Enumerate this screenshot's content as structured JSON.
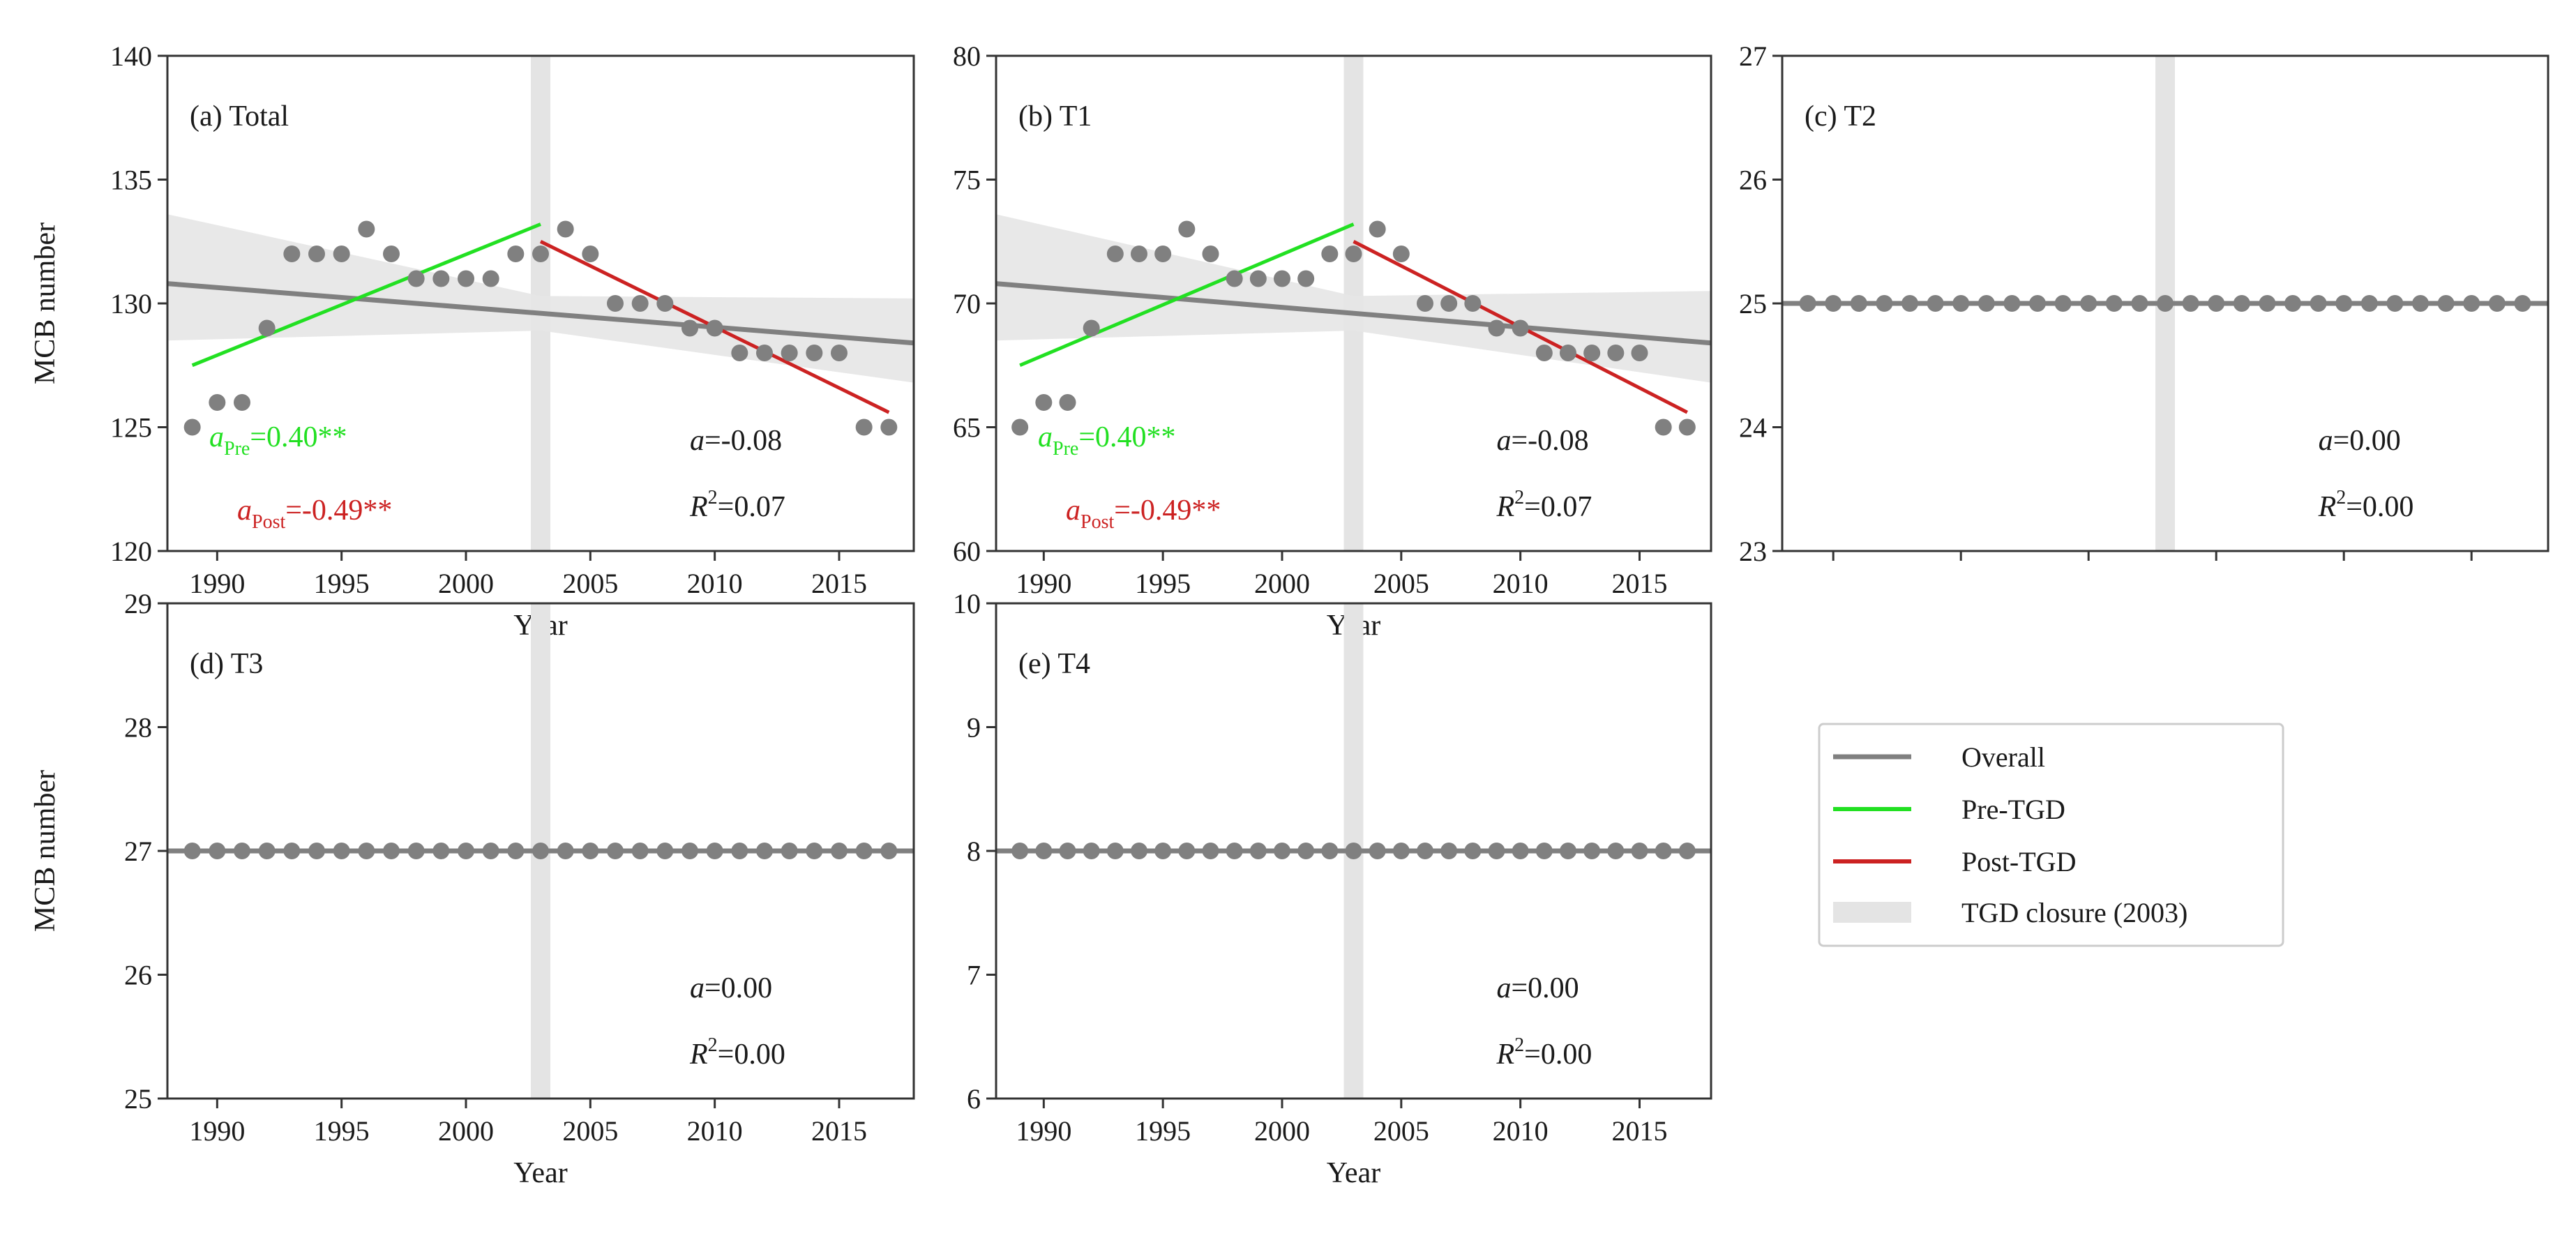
{
  "figure": {
    "xlabel": "Year",
    "ylabel": "MCB number",
    "colors": {
      "overall": "#808080",
      "pre": "#22e022",
      "post": "#cc2222",
      "closure": "#e4e4e4",
      "ci": "#e6e6e6",
      "points": "#808080",
      "text": "#1a1a1a"
    }
  },
  "legend": {
    "overall": "Overall",
    "pre": "Pre-TGD",
    "post": "Post-TGD",
    "closure": "TGD closure (2003)"
  },
  "stats": {
    "a_symbol": "a",
    "r_symbol": "R",
    "r_sup": "2",
    "eq": "=",
    "pre_sub": "Pre",
    "post_sub": "Post"
  },
  "chart_data": [
    {
      "id": "total",
      "type": "scatter",
      "title": "(a) Total",
      "xlim": [
        1988,
        2018
      ],
      "ylim": [
        120,
        140
      ],
      "yticks": [
        120,
        125,
        130,
        135,
        140
      ],
      "xticks": [
        1990,
        1995,
        2000,
        2005,
        2010,
        2015
      ],
      "show_x_labels": true,
      "show_ylabel": true,
      "closure_year": 2003,
      "x": [
        1989,
        1990,
        1991,
        1992,
        1993,
        1994,
        1995,
        1996,
        1997,
        1998,
        1999,
        2000,
        2001,
        2002,
        2003,
        2004,
        2005,
        2006,
        2007,
        2008,
        2009,
        2010,
        2011,
        2012,
        2013,
        2014,
        2015,
        2016,
        2017
      ],
      "y": [
        125,
        126,
        126,
        129,
        132,
        132,
        132,
        133,
        132,
        131,
        131,
        131,
        131,
        132,
        132,
        133,
        132,
        130,
        130,
        130,
        129,
        129,
        128,
        128,
        128,
        128,
        128,
        125,
        125
      ],
      "overall_fit": {
        "x": [
          1988,
          2018
        ],
        "y": [
          130.8,
          128.4
        ]
      },
      "ci_band": {
        "x": [
          1988,
          2003,
          2018
        ],
        "upper": [
          133.6,
          130.3,
          130.2
        ],
        "lower": [
          128.5,
          128.9,
          126.8
        ]
      },
      "pre_fit": {
        "x": [
          1989,
          2003
        ],
        "y": [
          127.5,
          133.2
        ]
      },
      "post_fit": {
        "x": [
          2003,
          2017
        ],
        "y": [
          132.5,
          125.6
        ]
      },
      "a_pre": "0.40**",
      "a_post": "-0.49**",
      "a_value": "-0.08",
      "r2_value": "0.07"
    },
    {
      "id": "t1",
      "type": "scatter",
      "title": "(b) T1",
      "xlim": [
        1988,
        2018
      ],
      "ylim": [
        60,
        80
      ],
      "yticks": [
        60,
        65,
        70,
        75,
        80
      ],
      "xticks": [
        1990,
        1995,
        2000,
        2005,
        2010,
        2015
      ],
      "show_x_labels": true,
      "show_ylabel": false,
      "closure_year": 2003,
      "x": [
        1989,
        1990,
        1991,
        1992,
        1993,
        1994,
        1995,
        1996,
        1997,
        1998,
        1999,
        2000,
        2001,
        2002,
        2003,
        2004,
        2005,
        2006,
        2007,
        2008,
        2009,
        2010,
        2011,
        2012,
        2013,
        2014,
        2015,
        2016,
        2017
      ],
      "y": [
        65,
        66,
        66,
        69,
        72,
        72,
        72,
        73,
        72,
        71,
        71,
        71,
        71,
        72,
        72,
        73,
        72,
        70,
        70,
        70,
        69,
        69,
        68,
        68,
        68,
        68,
        68,
        65,
        65
      ],
      "overall_fit": {
        "x": [
          1988,
          2018
        ],
        "y": [
          70.8,
          68.4
        ]
      },
      "ci_band": {
        "x": [
          1988,
          2003,
          2018
        ],
        "upper": [
          73.6,
          70.3,
          70.5
        ],
        "lower": [
          68.5,
          68.9,
          66.8
        ]
      },
      "pre_fit": {
        "x": [
          1989,
          2003
        ],
        "y": [
          67.5,
          73.2
        ]
      },
      "post_fit": {
        "x": [
          2003,
          2017
        ],
        "y": [
          72.5,
          65.6
        ]
      },
      "a_pre": "0.40**",
      "a_post": "-0.49**",
      "a_value": "-0.08",
      "r2_value": "0.07"
    },
    {
      "id": "t2",
      "type": "scatter",
      "title": "(c) T2",
      "xlim": [
        1988,
        2018
      ],
      "ylim": [
        23,
        27
      ],
      "yticks": [
        23,
        24,
        25,
        26,
        27
      ],
      "xticks": [
        1990,
        1995,
        2000,
        2005,
        2010,
        2015
      ],
      "show_x_labels": false,
      "show_ylabel": false,
      "closure_year": 2003,
      "x": [
        1989,
        1990,
        1991,
        1992,
        1993,
        1994,
        1995,
        1996,
        1997,
        1998,
        1999,
        2000,
        2001,
        2002,
        2003,
        2004,
        2005,
        2006,
        2007,
        2008,
        2009,
        2010,
        2011,
        2012,
        2013,
        2014,
        2015,
        2016,
        2017
      ],
      "y": [
        25,
        25,
        25,
        25,
        25,
        25,
        25,
        25,
        25,
        25,
        25,
        25,
        25,
        25,
        25,
        25,
        25,
        25,
        25,
        25,
        25,
        25,
        25,
        25,
        25,
        25,
        25,
        25,
        25
      ],
      "overall_fit": {
        "x": [
          1988,
          2018
        ],
        "y": [
          25,
          25
        ]
      },
      "a_value": "0.00",
      "r2_value": "0.00"
    },
    {
      "id": "t3",
      "type": "scatter",
      "title": "(d) T3",
      "xlim": [
        1988,
        2018
      ],
      "ylim": [
        25,
        29
      ],
      "yticks": [
        25,
        26,
        27,
        28,
        29
      ],
      "xticks": [
        1990,
        1995,
        2000,
        2005,
        2010,
        2015
      ],
      "show_x_labels": true,
      "show_ylabel": true,
      "closure_year": 2003,
      "x": [
        1989,
        1990,
        1991,
        1992,
        1993,
        1994,
        1995,
        1996,
        1997,
        1998,
        1999,
        2000,
        2001,
        2002,
        2003,
        2004,
        2005,
        2006,
        2007,
        2008,
        2009,
        2010,
        2011,
        2012,
        2013,
        2014,
        2015,
        2016,
        2017
      ],
      "y": [
        27,
        27,
        27,
        27,
        27,
        27,
        27,
        27,
        27,
        27,
        27,
        27,
        27,
        27,
        27,
        27,
        27,
        27,
        27,
        27,
        27,
        27,
        27,
        27,
        27,
        27,
        27,
        27,
        27
      ],
      "overall_fit": {
        "x": [
          1988,
          2018
        ],
        "y": [
          27,
          27
        ]
      },
      "a_value": "0.00",
      "r2_value": "0.00"
    },
    {
      "id": "t4",
      "type": "scatter",
      "title": "(e) T4",
      "xlim": [
        1988,
        2018
      ],
      "ylim": [
        6,
        10
      ],
      "yticks": [
        6,
        7,
        8,
        9,
        10
      ],
      "xticks": [
        1990,
        1995,
        2000,
        2005,
        2010,
        2015
      ],
      "show_x_labels": true,
      "show_ylabel": false,
      "closure_year": 2003,
      "x": [
        1989,
        1990,
        1991,
        1992,
        1993,
        1994,
        1995,
        1996,
        1997,
        1998,
        1999,
        2000,
        2001,
        2002,
        2003,
        2004,
        2005,
        2006,
        2007,
        2008,
        2009,
        2010,
        2011,
        2012,
        2013,
        2014,
        2015,
        2016,
        2017
      ],
      "y": [
        8,
        8,
        8,
        8,
        8,
        8,
        8,
        8,
        8,
        8,
        8,
        8,
        8,
        8,
        8,
        8,
        8,
        8,
        8,
        8,
        8,
        8,
        8,
        8,
        8,
        8,
        8,
        8,
        8
      ],
      "overall_fit": {
        "x": [
          1988,
          2018
        ],
        "y": [
          8,
          8
        ]
      },
      "a_value": "0.00",
      "r2_value": "0.00"
    }
  ]
}
